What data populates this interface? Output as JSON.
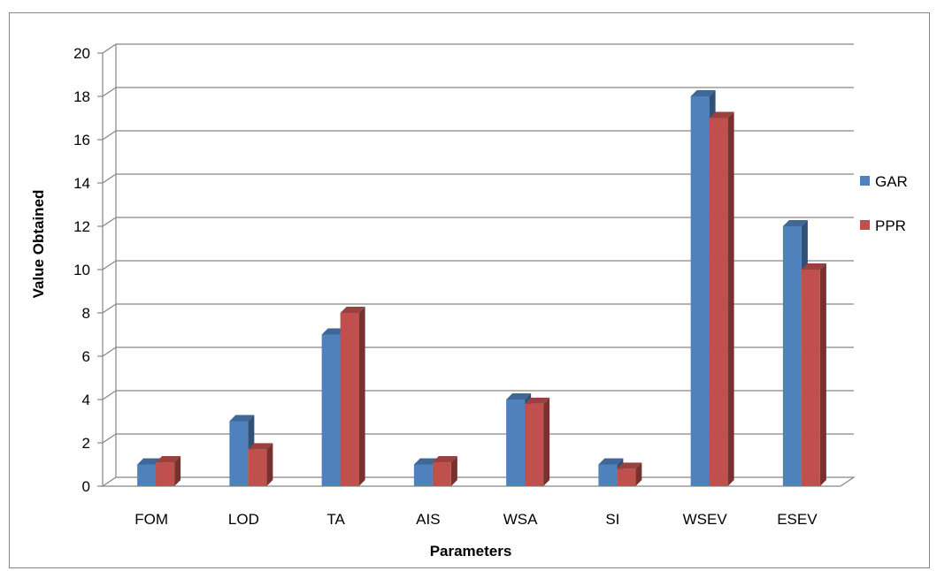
{
  "chart_data": {
    "type": "bar",
    "title": "",
    "xlabel": "Parameters",
    "ylabel": "Value Obtained",
    "ylim": [
      0,
      20
    ],
    "yticks": [
      0,
      2,
      4,
      6,
      8,
      10,
      12,
      14,
      16,
      18,
      20
    ],
    "grid": true,
    "legend_position": "right",
    "style": "3d-clustered-column",
    "categories": [
      "FOM",
      "LOD",
      "TA",
      "AIS",
      "WSA",
      "SI",
      "WSEV",
      "ESEV"
    ],
    "series": [
      {
        "name": "GAR",
        "color": "#4F81BD",
        "values": [
          1.0,
          3.0,
          7.0,
          1.0,
          4.0,
          1.0,
          18.0,
          12.0
        ]
      },
      {
        "name": "PPR",
        "color": "#C0504D",
        "values": [
          1.1,
          1.7,
          8.0,
          1.1,
          3.8,
          0.8,
          17.0,
          10.0
        ]
      }
    ]
  }
}
